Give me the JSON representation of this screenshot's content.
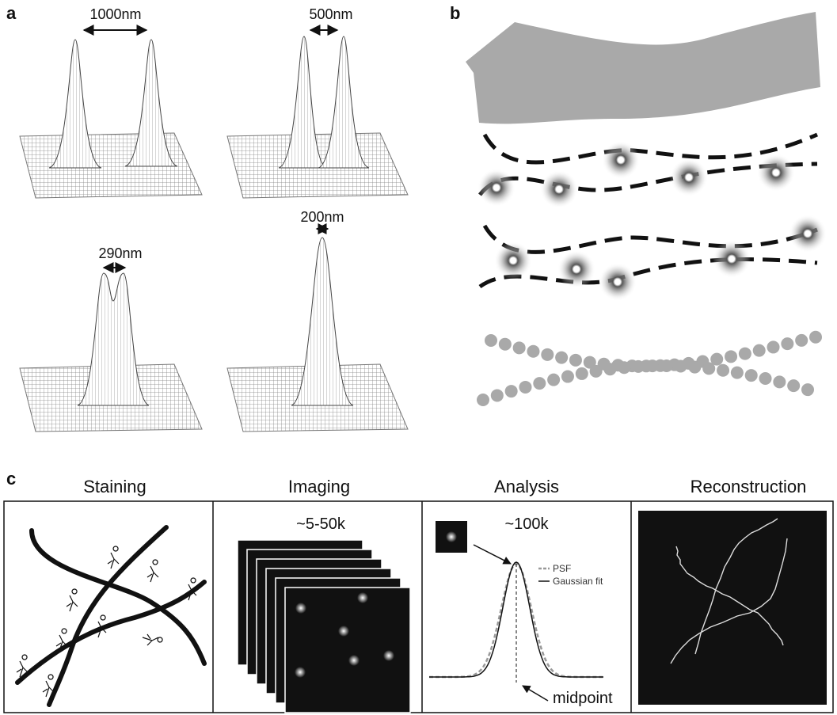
{
  "panels": {
    "a": {
      "label": "a",
      "separations": [
        "1000nm",
        "500nm",
        "290nm",
        "200nm"
      ]
    },
    "b": {
      "label": "b"
    },
    "c": {
      "label": "c",
      "steps": [
        {
          "title": "Staining"
        },
        {
          "title": "Imaging",
          "count": "~5-50k"
        },
        {
          "title": "Analysis",
          "count": "~100k",
          "legend": [
            "PSF",
            "Gaussian fit"
          ],
          "annotation": "midpoint"
        },
        {
          "title": "Reconstruction"
        }
      ]
    }
  }
}
